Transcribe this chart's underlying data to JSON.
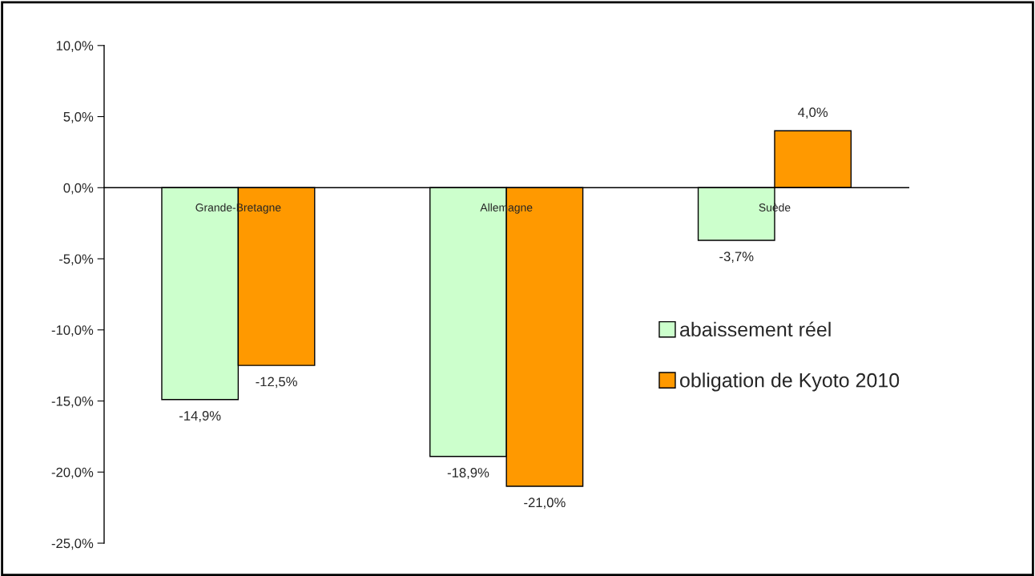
{
  "chart_data": {
    "type": "bar",
    "categories": [
      "Grande-Bretagne",
      "Allemagne",
      "Suède"
    ],
    "series": [
      {
        "name": "abaissement réel",
        "color": "#ccffcc",
        "values": [
          -14.9,
          -18.9,
          -3.7
        ],
        "value_labels": [
          "-14,9%",
          "-18,9%",
          "-3,7%"
        ]
      },
      {
        "name": "obligation de Kyoto 2010",
        "color": "#ff9900",
        "values": [
          -12.5,
          -21.0,
          4.0
        ],
        "value_labels": [
          "-12,5%",
          "-21,0%",
          "4,0%"
        ]
      }
    ],
    "ylim": [
      -25,
      10
    ],
    "yticks": [
      {
        "value": 10,
        "label": "10,0%"
      },
      {
        "value": 5,
        "label": "5,0%"
      },
      {
        "value": 0,
        "label": "0,0%"
      },
      {
        "value": -5,
        "label": "-5,0%"
      },
      {
        "value": -10,
        "label": "-10,0%"
      },
      {
        "value": -15,
        "label": "-15,0%"
      },
      {
        "value": -20,
        "label": "-20,0%"
      },
      {
        "value": -25,
        "label": "-25,0%"
      }
    ],
    "grid": false,
    "legend": "right"
  }
}
